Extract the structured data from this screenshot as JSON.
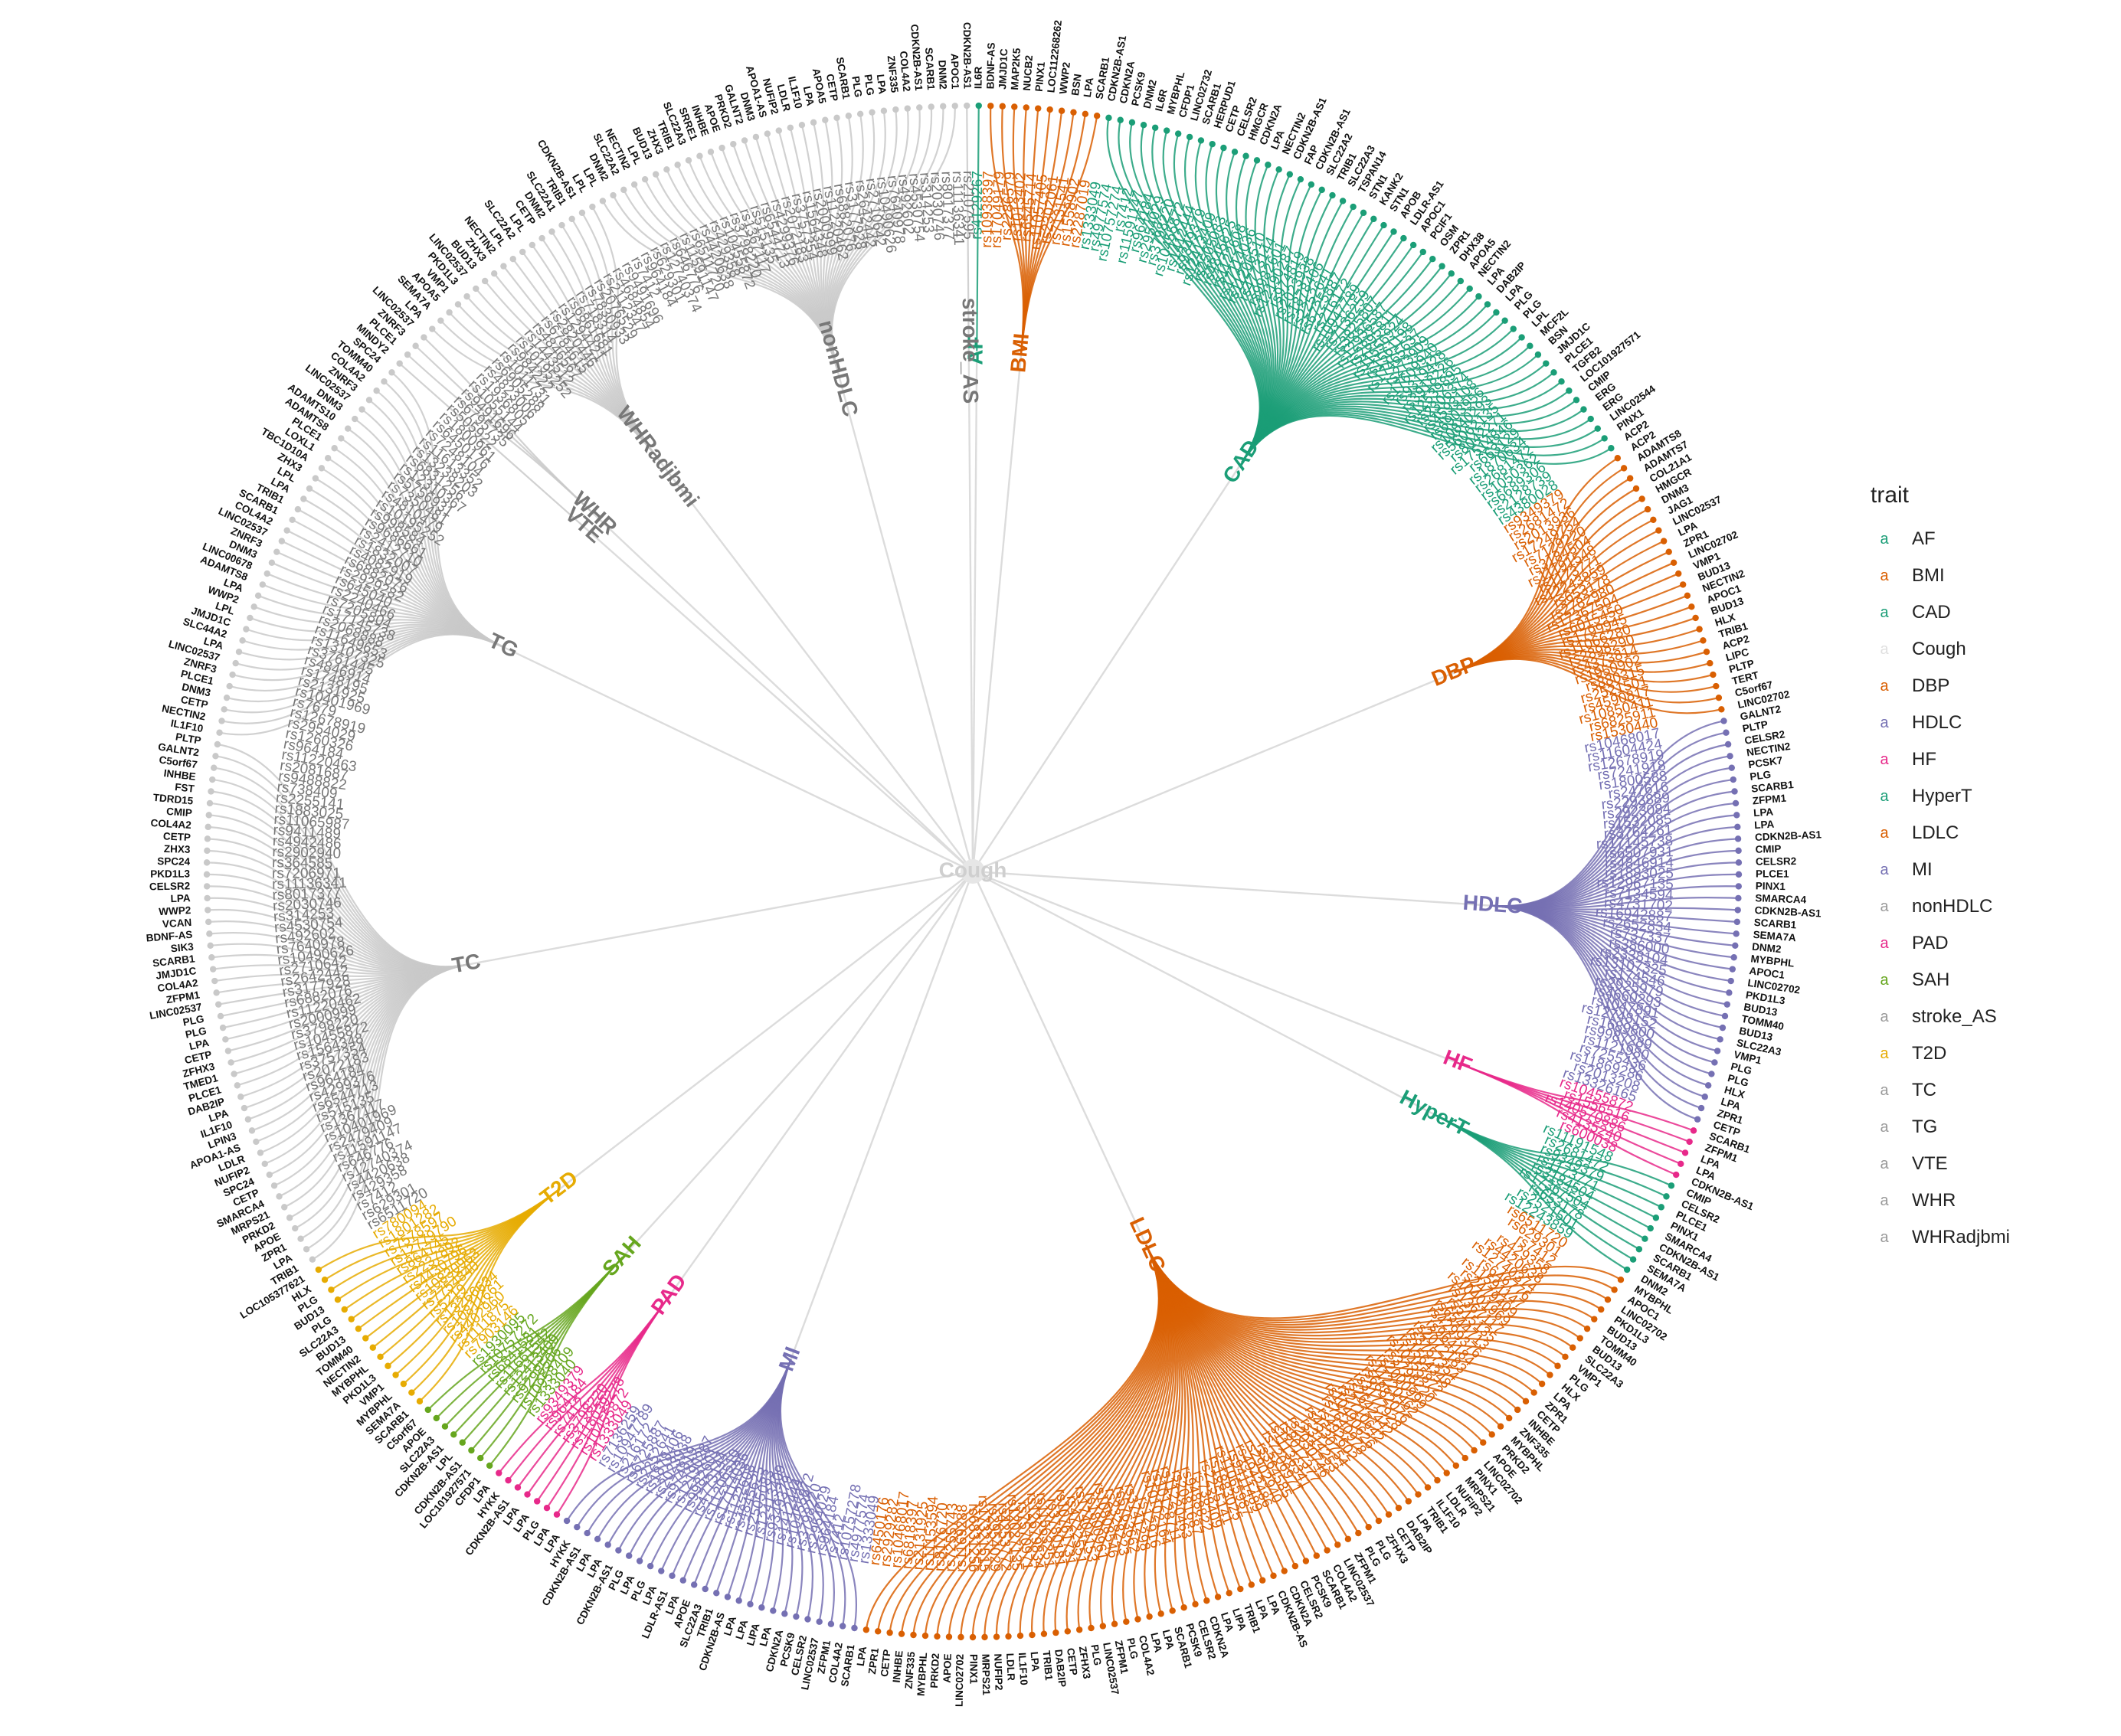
{
  "root_label": "Cough",
  "legend": {
    "title": "trait",
    "key_glyph": "a",
    "items": [
      {
        "label": "AF",
        "color": "#1B9E77"
      },
      {
        "label": "BMI",
        "color": "#D95F02"
      },
      {
        "label": "CAD",
        "color": "#1B9E77"
      },
      {
        "label": "Cough",
        "color": "#E0E0E0"
      },
      {
        "label": "DBP",
        "color": "#D95F02"
      },
      {
        "label": "HDLC",
        "color": "#7570B3"
      },
      {
        "label": "HF",
        "color": "#E7298A"
      },
      {
        "label": "HyperT",
        "color": "#1B9E77"
      },
      {
        "label": "LDLC",
        "color": "#D95F02"
      },
      {
        "label": "MI",
        "color": "#7570B3"
      },
      {
        "label": "nonHDLC",
        "color": "#666666"
      },
      {
        "label": "PAD",
        "color": "#E7298A"
      },
      {
        "label": "SAH",
        "color": "#66A61E"
      },
      {
        "label": "stroke_AS",
        "color": "#666666"
      },
      {
        "label": "T2D",
        "color": "#E6AB02"
      },
      {
        "label": "TC",
        "color": "#666666"
      },
      {
        "label": "TG",
        "color": "#666666"
      },
      {
        "label": "VTE",
        "color": "#666666"
      },
      {
        "label": "WHR",
        "color": "#666666"
      },
      {
        "label": "WHRadjbmi",
        "color": "#666666"
      }
    ]
  },
  "traits": [
    {
      "name": "AF",
      "color": "#1B9E77",
      "snps": [
        "rs4129267"
      ],
      "genes": [
        "IL6R"
      ]
    },
    {
      "name": "BMI",
      "color": "#D95F02",
      "snps": [
        "rs10938397",
        "rs17049179",
        "rs2286579",
        "rs1013402",
        "rs6545714",
        "rs11057405",
        "rs2302061",
        "rs7131541",
        "rs1558902",
        "rs2287019"
      ],
      "genes": [
        "BDNF-AS",
        "JMJD1C",
        "MAP2K5",
        "NUCB2",
        "PINX1",
        "LOC112268262",
        "WWP2",
        "BSN",
        "LPA",
        "SCARB1"
      ]
    },
    {
      "name": "CAD",
      "color": "#1B9E77",
      "snps": [
        "rs1333049",
        "rs4977574",
        "rs10757274",
        "rs7412",
        "rs11591147",
        "rs964184",
        "rs2954029",
        "rs3798220",
        "rs10455872",
        "rs1412444",
        "rs9349379",
        "rs12413409",
        "rs2505083",
        "rs4845625",
        "rs1122608",
        "rs17114036",
        "rs11206510",
        "rs4773144",
        "rs9982601",
        "rs12190287",
        "rs974819",
        "rs2023938",
        "rs1878406",
        "rs2252641",
        "rs6725887",
        "rs216172",
        "rs10947789",
        "rs7136259",
        "rs3825807",
        "rs12936587",
        "rs2895811",
        "rs11556924",
        "rs1561198",
        "rs17465637",
        "rs273909",
        "rs17609940",
        "rs9319428",
        "rs3918226",
        "rs12539895",
        "rs2306374",
        "rs4593108",
        "rs6903956",
        "rs10840293",
        "rs56062135",
        "rs8042271",
        "rs17514846",
        "rs663129",
        "rs1870634",
        "rs2681472",
        "rs1050362",
        "rs6689306",
        "rs2128739",
        "rs4380028"
      ],
      "genes": [
        "CDKN2B-AS1",
        "CDKN2A",
        "PCSK9",
        "DNM2",
        "IL6R",
        "MYBPHL",
        "CFDP1",
        "LINC02732",
        "SCARB1",
        "HERPUD1",
        "CETP",
        "CELSR2",
        "HMGCR",
        "CDKN2A",
        "LPA",
        "NECTIN2",
        "CDKN2B-AS1",
        "FAP",
        "CDKN2B-AS1",
        "SLC22A2",
        "TRIB1",
        "SLC22A3",
        "TSPAN14",
        "STN1",
        "KANK2",
        "STN1",
        "APOB",
        "LDLR-AS1",
        "APOC1",
        "PCIF1",
        "OSM",
        "ZPR1",
        "DHX38",
        "APOA5",
        "NECTIN2",
        "LPA",
        "DAB2IP",
        "LPA",
        "PLG",
        "PLG",
        "LPL",
        "MCF2L",
        "BSN",
        "JMJD1C",
        "PLCE1",
        "TGFB2",
        "LOC101927571",
        "CMIP",
        "ERG",
        "ERG",
        "LINC02544",
        "PINX1",
        "ACP2"
      ]
    },
    {
      "name": "DBP",
      "color": "#D95F02",
      "snps": [
        "rs9349379",
        "rs2681472",
        "rs2013936",
        "rs17249754",
        "rs7129220",
        "rs3184504",
        "rs11191548",
        "rs1173771",
        "rs12243859",
        "rs653178",
        "rs2782980",
        "rs17367504",
        "rs6015450",
        "rs1799945",
        "rs11066280",
        "rs2898290",
        "rs4373814",
        "rs1950902",
        "rs880315",
        "rs2521501",
        "rs4590817",
        "rs10850411",
        "rs6825911",
        "rs1530440"
      ],
      "genes": [
        "ACP2",
        "ADAMTS8",
        "ADAMTS7",
        "COL21A1",
        "HMGCR",
        "DNM3",
        "JAG1",
        "LINC02537",
        "LPA",
        "ZPR1",
        "LINC02702",
        "VMP1",
        "BUD13",
        "NECTIN2",
        "APOC1",
        "BUD13",
        "HLX",
        "TRIB1",
        "ACP2",
        "LIPC",
        "PLTP",
        "TERT",
        "C5orf67",
        "LINC02702"
      ]
    },
    {
      "name": "HDLC",
      "color": "#7570B3",
      "snps": [
        "rs10468017",
        "rs11604424",
        "rs12678919",
        "rs7241918",
        "rs1800588",
        "rs247616",
        "rs2293889",
        "rs2923084",
        "rs1532085",
        "rs3764261",
        "rs17145738",
        "rs6507931",
        "rs4846914",
        "rs1883025",
        "rs12967135",
        "rs7134594",
        "rs4731702",
        "rs16942887",
        "rs2652834",
        "rs737337",
        "rs386000",
        "rs2338104",
        "rs13107325",
        "rs174546",
        "rs2925979",
        "rs4660293",
        "rs1047891",
        "rs12748152",
        "rs1689800",
        "rs9987289",
        "rs1121980",
        "rs7255436",
        "rs11869286",
        "rs2013208",
        "rs13326165"
      ],
      "genes": [
        "GALNT2",
        "PLTP",
        "CELSR2",
        "NECTIN2",
        "PCSK7",
        "PLG",
        "SCARB1",
        "ZFPM1",
        "LPA",
        "LPA",
        "CDKN2B-AS1",
        "CMIP",
        "CELSR2",
        "PLCE1",
        "PINX1",
        "SMARCA4",
        "CDKN2B-AS1",
        "SCARB1",
        "SEMA7A",
        "DNM2",
        "MYBPHL",
        "APOC1",
        "LINC02702",
        "PKD1L3",
        "BUD13",
        "TOMM40",
        "BUD13",
        "SLC22A3",
        "VMP1",
        "PLG",
        "PLG",
        "HLX",
        "LPA",
        "ZPR1",
        "CETP"
      ]
    },
    {
      "name": "HF",
      "color": "#E7298A",
      "snps": [
        "rs10455872",
        "rs1556516",
        "rs140570886",
        "rs4135240",
        "rs600038"
      ],
      "genes": [
        "SCARB1",
        "ZFPM1",
        "LPA",
        "LPA",
        "CDKN2B-AS1"
      ]
    },
    {
      "name": "HyperT",
      "color": "#1B9E77",
      "snps": [
        "rs11191548",
        "rs2681472",
        "rs9349379",
        "rs1173771",
        "rs3184504",
        "rs17367504",
        "rs653178",
        "rs2521501",
        "rs12243859"
      ],
      "genes": [
        "CMIP",
        "CELSR2",
        "PLCE1",
        "PINX1",
        "SMARCA4",
        "CDKN2B-AS1",
        "SCARB1",
        "SEMA7A",
        "DNM2"
      ]
    },
    {
      "name": "LDLC",
      "color": "#D95F02",
      "snps": [
        "rs6511720",
        "rs629301",
        "rs7412",
        "rs429358",
        "rs4420638",
        "rs12740374",
        "rs646776",
        "rs11591147",
        "rs2479409",
        "rs10401969",
        "rs1367117",
        "rs515135",
        "rs6544713",
        "rs4299376",
        "rs964184",
        "rs2072183",
        "rs3757354",
        "rs1564348",
        "rs10455872",
        "rs3798220",
        "rs2000999",
        "rs11220462",
        "rs6882076",
        "rs3177928",
        "rs2642442",
        "rs2710642",
        "rs10490626",
        "rs7640978",
        "rs492602",
        "rs4530754",
        "rs314253",
        "rs2030746",
        "rs8017377",
        "rs11136341",
        "rs7206971",
        "rs364585",
        "rs2902940",
        "rs4942486",
        "rs9411489",
        "rs11065987",
        "rs1883025",
        "rs2255141",
        "rs738409",
        "rs9488822",
        "rs2081687",
        "rs11220463",
        "rs10128711",
        "rs10102164",
        "rs12916",
        "rs3741298",
        "rs5763662",
        "rs2328223",
        "rs10808546",
        "rs1800961",
        "rs17404153",
        "rs4722551",
        "rs10761731",
        "rs3780181",
        "rs11563251",
        "rs12679834",
        "rs7570971",
        "rs12027135",
        "rs4253772",
        "rs2954029",
        "rs17321515",
        "rs6831256",
        "rs1169288",
        "rs7255743",
        "rs8176720",
        "rs11153594",
        "rs2131925",
        "rs6818397",
        "rs10468017",
        "rs2929282",
        "rs6450176"
      ],
      "genes": [
        "MYBPHL",
        "APOC1",
        "LINC02702",
        "PKD1L3",
        "BUD13",
        "TOMM40",
        "BUD13",
        "SLC22A3",
        "VMP1",
        "PLG",
        "HLX",
        "LPA",
        "ZPR1",
        "CETP",
        "INHBE",
        "ZNF335",
        "MYBPHL",
        "PRKD2",
        "APOE",
        "LINC02702",
        "PINX1",
        "MRPS21",
        "NUFIP2",
        "LDLR",
        "IL1F10",
        "TRIB1",
        "LPA",
        "DAB2IP",
        "CETP",
        "ZFHX3",
        "PLG",
        "PLG",
        "ZFPM1",
        "LINC02537",
        "COL4A2",
        "SCARB1",
        "PCSK9",
        "CELSR2",
        "CDKN2A",
        "CDKN2B-AS",
        "LPA",
        "LPA",
        "TRIB1",
        "LIPA",
        "LPA",
        "CDKN2A",
        "CELSR2",
        "PCSK9",
        "SCARB1",
        "LPA",
        "LPA",
        "COL4A2",
        "PLG",
        "ZFPM1",
        "LINC02537",
        "PLG",
        "ZFHX3",
        "CETP",
        "DAB2IP",
        "TRIB1",
        "LPA",
        "IL1F10",
        "LDLR",
        "NUFIP2",
        "MRPS21",
        "PINX1",
        "LINC02702",
        "APOE",
        "PRKD2",
        "MYBPHL",
        "ZNF335",
        "INHBE",
        "CETP",
        "ZPR1",
        "LPA"
      ]
    },
    {
      "name": "MI",
      "color": "#7570B3",
      "snps": [
        "rs1333049",
        "rs4977574",
        "rs10757278",
        "rs7412",
        "rs964184",
        "rs2954029",
        "rs3798220",
        "rs10455872",
        "rs1412444",
        "rs9349379",
        "rs12413409",
        "rs2505083",
        "rs4845625",
        "rs1122608",
        "rs17114036",
        "rs11206510",
        "rs4773144",
        "rs9982601",
        "rs12190287",
        "rs974819",
        "rs2023938",
        "rs1878406",
        "rs2252641",
        "rs6725887",
        "rs216172",
        "rs10947789",
        "rs7136259"
      ],
      "genes": [
        "SCARB1",
        "COL4A2",
        "ZFPM1",
        "LINC02537",
        "CELSR2",
        "PCSK9",
        "CDKN2A",
        "LPA",
        "LIPA",
        "LPA",
        "LPA",
        "CDKN2B-AS",
        "TRIB1",
        "SLC22A3",
        "APOE",
        "LPA",
        "LDLR-AS1",
        "LPA",
        "PLG",
        "LPA",
        "PLG",
        "CDKN2B-AS1",
        "LPA",
        "LPA",
        "CDKN2B-AS1",
        "HYKK",
        "LPA"
      ]
    },
    {
      "name": "PAD",
      "color": "#E7298A",
      "snps": [
        "rs1333049",
        "rs10455872",
        "rs118039278",
        "rs3798220",
        "rs7412",
        "rs964184",
        "rs9349379"
      ],
      "genes": [
        "LPA",
        "PLG",
        "LPA",
        "LPA",
        "CDKN2B-AS1",
        "HYKK",
        "LPA"
      ]
    },
    {
      "name": "SAH",
      "color": "#66A61E",
      "snps": [
        "rs1333040",
        "rs10958409",
        "rs9298506",
        "rs12413409",
        "rs11661542",
        "rs6841581",
        "rs10757272",
        "rs1930095"
      ],
      "genes": [
        "CFDP1",
        "LOC101927571",
        "CDKN2B-AS1",
        "LPL",
        "CDKN2B-AS1",
        "SLC22A3",
        "APOE",
        "C5orf67"
      ]
    },
    {
      "name": "stroke_AS",
      "color": "#666666",
      "snps": [
        "rs2107595"
      ],
      "genes": [
        "CDKN2B-AS1"
      ]
    },
    {
      "name": "T2D",
      "color": "#E6AB02",
      "snps": [
        "rs7903146",
        "rs1111875",
        "rs4402960",
        "rs10811661",
        "rs13266634",
        "rs5219",
        "rs7754840",
        "rs10830963",
        "rs4430796",
        "rs2237892",
        "rs864745",
        "rs12779790",
        "rs7578597",
        "rs1801282",
        "rs780094"
      ],
      "genes": [
        "SCARB1",
        "SEMA7A",
        "MYBPHL",
        "VMP1",
        "PKD1L3",
        "MYBPHL",
        "NECTIN2",
        "TOMM40",
        "BUD13",
        "SLC22A3",
        "PLG",
        "BUD13",
        "PLG",
        "HLX",
        "LOC105377621"
      ]
    },
    {
      "name": "TC",
      "color": "#666666",
      "snps": [
        "rs6511720",
        "rs629301",
        "rs7412",
        "rs429358",
        "rs4420638",
        "rs12740374",
        "rs646776",
        "rs11591147",
        "rs2479409",
        "rs10401969",
        "rs1367117",
        "rs515135",
        "rs6544713",
        "rs4299376",
        "rs964184",
        "rs2072183",
        "rs3757354",
        "rs1564348",
        "rs10455872",
        "rs3798220",
        "rs2000999",
        "rs11220462",
        "rs6882076",
        "rs3177928",
        "rs2642442",
        "rs2710642",
        "rs10490626",
        "rs7640978",
        "rs492602",
        "rs4530754",
        "rs314253",
        "rs2030746",
        "rs8017377",
        "rs11136341",
        "rs7206971",
        "rs364585",
        "rs2902940",
        "rs4942486",
        "rs9411489",
        "rs11065987",
        "rs1883025",
        "rs2255141",
        "rs738409",
        "rs9488822",
        "rs2081687",
        "rs11220463"
      ],
      "genes": [
        "TRIB1",
        "LPA",
        "ZPR1",
        "APOE",
        "PRKD2",
        "MRPS21",
        "SMARCA4",
        "CETP",
        "SPC24",
        "NUFIP2",
        "LDLR",
        "APOA1-AS",
        "LPIN3",
        "IL1F10",
        "LPA",
        "DAB2IP",
        "PLCE1",
        "TMED1",
        "ZFHX3",
        "CETP",
        "LPA",
        "PLG",
        "PLG",
        "LINC02537",
        "ZFPM1",
        "COL4A2",
        "JMJD1C",
        "SCARB1",
        "SIK3",
        "BDNF-AS",
        "VCAN",
        "WWP2",
        "LPA",
        "CELSR2",
        "PKD1L3",
        "SPC24",
        "ZHX3",
        "CETP",
        "COL4A2",
        "CMIP",
        "TDRD15",
        "FST",
        "INHBE",
        "C5orf67",
        "GALNT2",
        "PLTP"
      ]
    },
    {
      "name": "TG",
      "color": "#666666",
      "snps": [
        "rs964184",
        "rs1260326",
        "rs2954029",
        "rs12678919",
        "rs7679",
        "rs10401969",
        "rs2131925",
        "rs1748195",
        "rs4846914",
        "rs3761445",
        "rs13107325",
        "rs11649653",
        "rs2068888",
        "rs17145738",
        "rs7205804",
        "rs2240466",
        "rs645040",
        "rs2929282",
        "rs6882076",
        "rs4082919",
        "rs1832007",
        "rs2412710",
        "rs9686661",
        "rs998584",
        "rs10195252",
        "rs4810479",
        "rs7350481",
        "rs5756931",
        "rs12310367",
        "rs6831256",
        "rs13238203",
        "rs11613352",
        "rs7248104",
        "rs6450176",
        "rs1800961"
      ],
      "genes": [
        "IL1F10",
        "NECTIN2",
        "CETP",
        "DNM3",
        "PLCE1",
        "ZNRF3",
        "LINC02537",
        "LPA",
        "SLC44A2",
        "JMJD1C",
        "LPL",
        "WWP2",
        "LPA",
        "ADAMTS8",
        "LINC00678",
        "DNM3",
        "ZNRF3",
        "LINC02537",
        "COL4A2",
        "SCARB1",
        "TRIB1",
        "LPA",
        "LPL",
        "ZHX3",
        "TBC1D10A",
        "LOXL1",
        "PLCE1",
        "ADAMTS8",
        "ADAMTS10",
        "DNM3",
        "LINC02537",
        "ZNRF3",
        "COL4A2",
        "TOMM40",
        "SPC24"
      ]
    },
    {
      "name": "VTE",
      "color": "#666666",
      "snps": [
        "rs505922"
      ],
      "genes": [
        "MINDY2"
      ]
    },
    {
      "name": "WHR",
      "color": "#666666",
      "snps": [
        "rs6795735",
        "rs9491696",
        "rs1055144"
      ],
      "genes": [
        "PLCE1",
        "ZNRF3",
        "LINC02537"
      ]
    },
    {
      "name": "WHRadjbmi",
      "color": "#666666",
      "snps": [
        "rs1936805",
        "rs4823006",
        "rs6905288",
        "rs1011731",
        "rs984222",
        "rs10195252",
        "rs1443512",
        "rs4846567",
        "rs6784615",
        "rs2820446",
        "rs1294421",
        "rs6861681",
        "rs718314",
        "rs7830933",
        "rs2076529",
        "rs2112347",
        "rs4684854",
        "rs9491696"
      ],
      "genes": [
        "LPA",
        "SEMA7A",
        "APOA5",
        "VMP1",
        "PKD1L3",
        "LINC02537",
        "BUD13",
        "ZHX3",
        "NECTIN2",
        "LPL",
        "SLC22A2",
        "LPL",
        "CETP",
        "DNM2",
        "SLC22A1",
        "TRIB1",
        "CDKN2B-AS1",
        "LPL"
      ]
    },
    {
      "name": "nonHDLC",
      "color": "#666666",
      "snps": [
        "rs7412",
        "rs964184",
        "rs629301",
        "rs12740374",
        "rs646776",
        "rs11591147",
        "rs6511720",
        "rs4420638",
        "rs429358",
        "rs10455872",
        "rs3798220",
        "rs1367117",
        "rs515135",
        "rs6544713",
        "rs4299376",
        "rs2072183",
        "rs3757354",
        "rs1564348",
        "rs2000999",
        "rs11220462",
        "rs6882076",
        "rs3177928",
        "rs2642442",
        "rs2710642",
        "rs10490626",
        "rs7640978",
        "rs492602",
        "rs4530754",
        "rs314253",
        "rs2030746",
        "rs8017377",
        "rs11136341"
      ],
      "genes": [
        "LPL",
        "DNM2",
        "SLC22A2",
        "NECTIN2",
        "LPL",
        "BUD13",
        "ZHX3",
        "TRIB1",
        "SLC22A3",
        "SRRE1",
        "INHBE",
        "APOE",
        "PRKD2",
        "GALNT2",
        "DNM3",
        "APOA1-AS",
        "NUFIP2",
        "LDLR",
        "IL1F10",
        "LPA",
        "APOA5",
        "CETP",
        "SCARB1",
        "PLG",
        "PLG",
        "LPA",
        "ZNF335",
        "COL4A2",
        "CDKN2B-AS1",
        "SCARB1",
        "DNM2",
        "APOC1"
      ]
    }
  ],
  "layout_order": [
    "AF",
    "BMI",
    "CAD",
    "DBP",
    "HDLC",
    "HF",
    "HyperT",
    "LDLC",
    "MI",
    "PAD",
    "SAH",
    "T2D",
    "TC",
    "TG",
    "VTE",
    "WHR",
    "WHRadjbmi",
    "nonHDLC",
    "stroke_AS"
  ]
}
